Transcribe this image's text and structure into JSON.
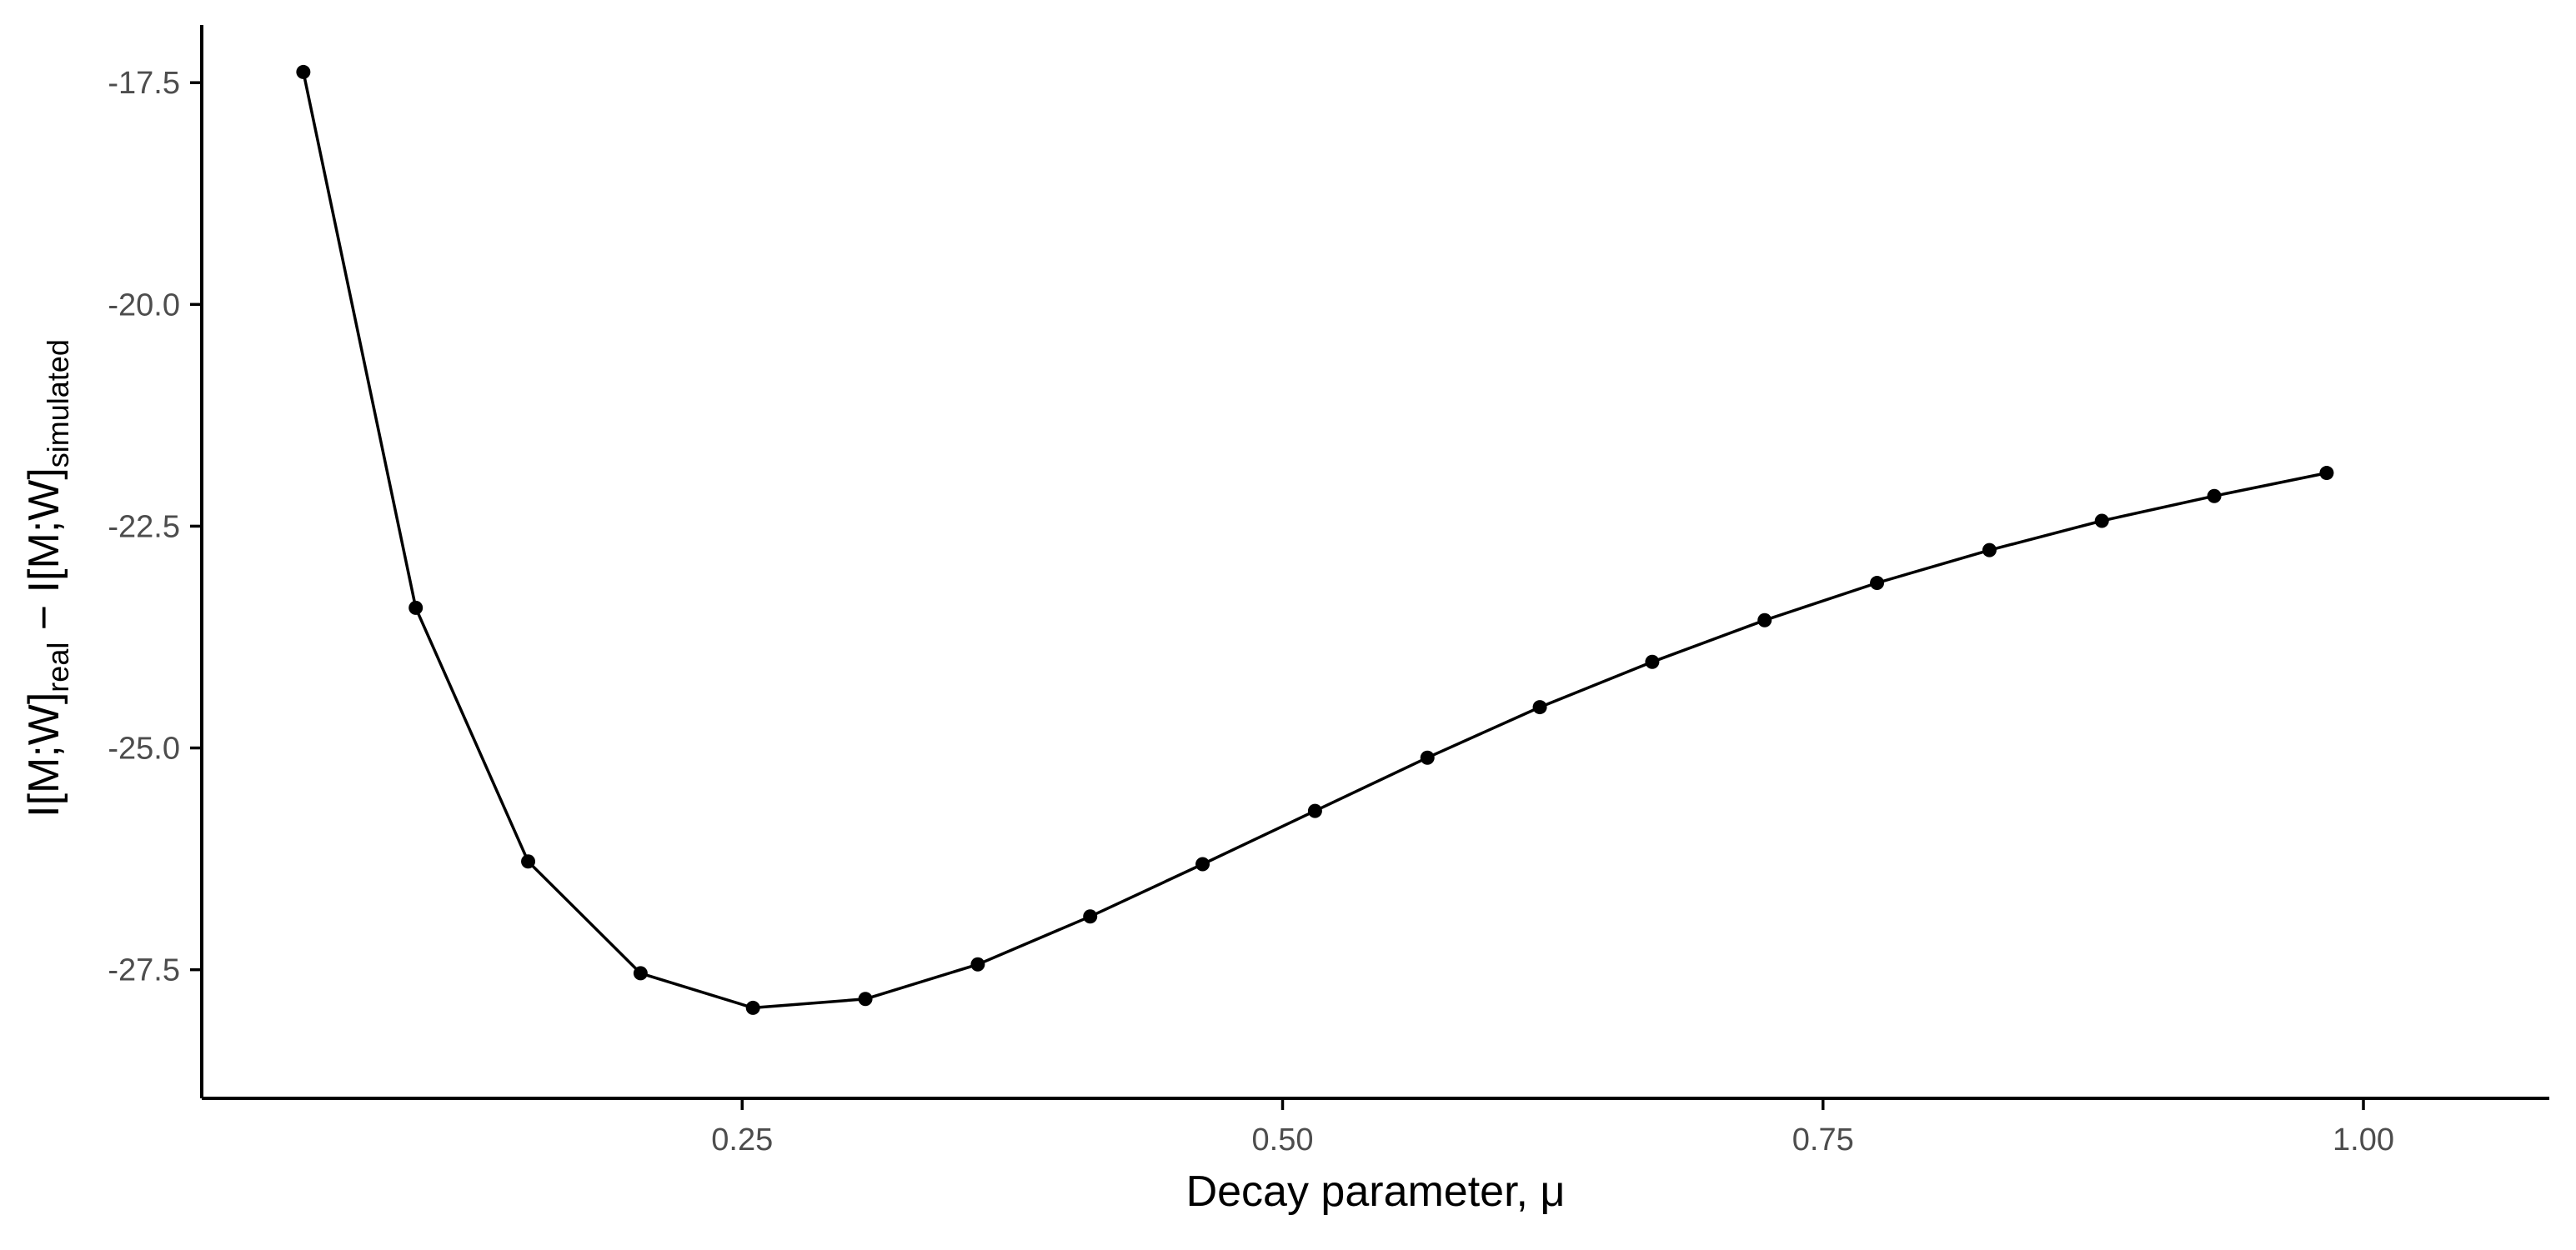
{
  "chart_data": {
    "type": "line",
    "x_label": "Decay parameter, μ",
    "y_label": {
      "base1": "I[M;W]",
      "sub1": "real",
      "operator": " − ",
      "base2": "I[M;W]",
      "sub2": "simulated"
    },
    "x_range": [
      0.0,
      1.086
    ],
    "y_range": [
      -28.95,
      -16.85
    ],
    "x_ticks": [
      {
        "value": 0.25,
        "label": "0.25"
      },
      {
        "value": 0.5,
        "label": "0.50"
      },
      {
        "value": 0.75,
        "label": "0.75"
      },
      {
        "value": 1.0,
        "label": "1.00"
      }
    ],
    "y_ticks": [
      {
        "value": -17.5,
        "label": "-17.5"
      },
      {
        "value": -20.0,
        "label": "-20.0"
      },
      {
        "value": -22.5,
        "label": "-22.5"
      },
      {
        "value": -25.0,
        "label": "-25.0"
      },
      {
        "value": -27.5,
        "label": "-27.5"
      }
    ],
    "series": [
      {
        "color": "#000000",
        "markers": true,
        "points": [
          {
            "x": 0.047,
            "y": -17.38
          },
          {
            "x": 0.099,
            "y": -23.42
          },
          {
            "x": 0.151,
            "y": -26.28
          },
          {
            "x": 0.203,
            "y": -27.54
          },
          {
            "x": 0.255,
            "y": -27.93
          },
          {
            "x": 0.307,
            "y": -27.83
          },
          {
            "x": 0.359,
            "y": -27.44
          },
          {
            "x": 0.411,
            "y": -26.9
          },
          {
            "x": 0.463,
            "y": -26.31
          },
          {
            "x": 0.515,
            "y": -25.71
          },
          {
            "x": 0.567,
            "y": -25.11
          },
          {
            "x": 0.619,
            "y": -24.54
          },
          {
            "x": 0.671,
            "y": -24.03
          },
          {
            "x": 0.723,
            "y": -23.56
          },
          {
            "x": 0.775,
            "y": -23.14
          },
          {
            "x": 0.827,
            "y": -22.77
          },
          {
            "x": 0.879,
            "y": -22.44
          },
          {
            "x": 0.931,
            "y": -22.16
          },
          {
            "x": 0.983,
            "y": -21.9
          }
        ]
      }
    ],
    "grid": false,
    "legend": "none"
  }
}
